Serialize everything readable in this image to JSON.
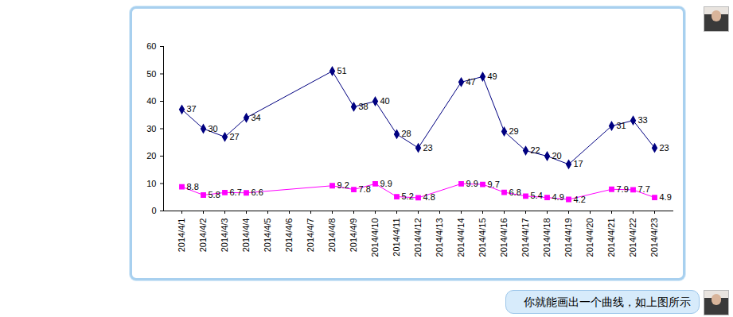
{
  "chart_data": {
    "type": "line",
    "categories": [
      "2014/4/1",
      "2014/4/2",
      "2014/4/3",
      "2014/4/4",
      "2014/4/5",
      "2014/4/6",
      "2014/4/7",
      "2014/4/8",
      "2014/4/9",
      "2014/4/10",
      "2014/4/11",
      "2014/4/12",
      "2014/4/13",
      "2014/4/14",
      "2014/4/15",
      "2014/4/16",
      "2014/4/17",
      "2014/4/18",
      "2014/4/19",
      "2014/4/20",
      "2014/4/21",
      "2014/4/22",
      "2014/4/23"
    ],
    "series": [
      {
        "color": "#000080",
        "marker": "diamond",
        "values": [
          37,
          30,
          27,
          34,
          null,
          null,
          null,
          51,
          38,
          40,
          28,
          23,
          null,
          47,
          49,
          29,
          22,
          20,
          17,
          null,
          31,
          33,
          23
        ]
      },
      {
        "color": "#ff00ff",
        "marker": "square",
        "values": [
          8.8,
          5.8,
          6.7,
          6.6,
          null,
          null,
          null,
          9.2,
          7.8,
          9.9,
          5.2,
          4.8,
          null,
          9.9,
          9.7,
          6.8,
          5.4,
          4.9,
          4.2,
          null,
          7.9,
          7.7,
          4.9
        ]
      }
    ],
    "ylim": [
      0,
      60
    ],
    "yticks": [
      0,
      10,
      20,
      30,
      40,
      50,
      60
    ],
    "grid": false,
    "data_labels": true
  },
  "message": "你就能画出一个曲线，如上图所示"
}
